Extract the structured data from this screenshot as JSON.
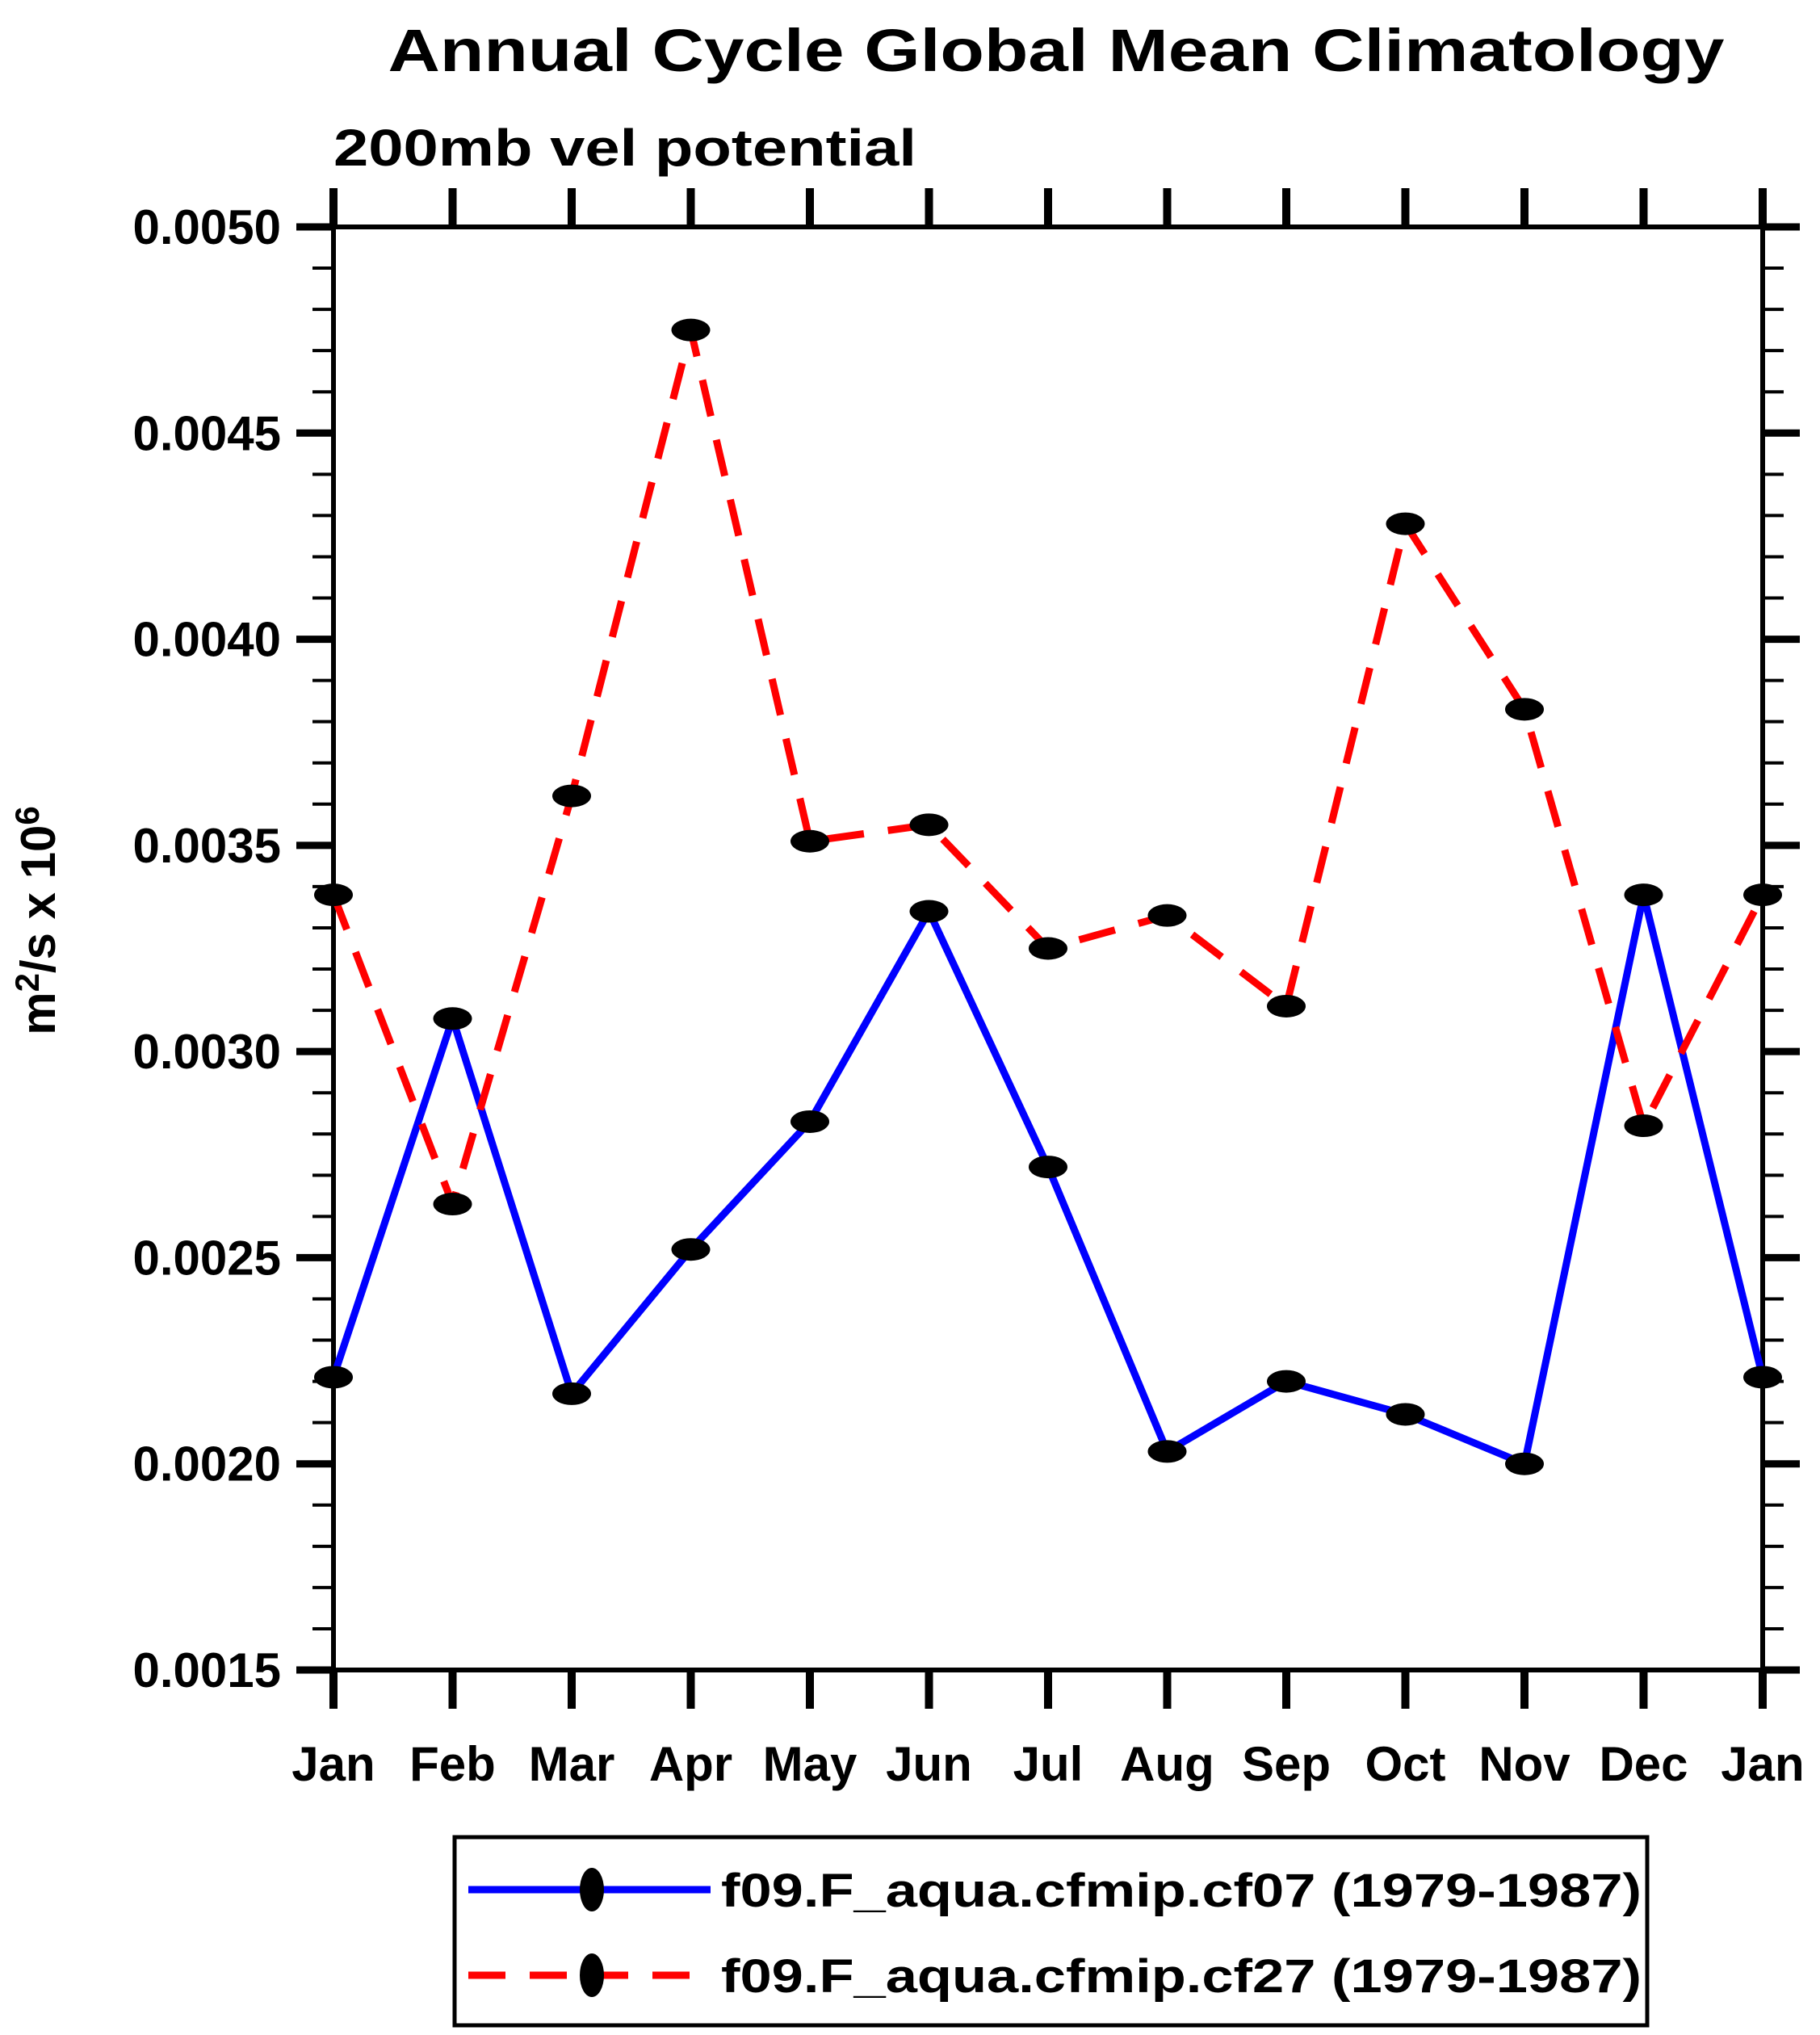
{
  "page": {
    "background_color": "#ffffff",
    "text_color": "#000000"
  },
  "chart_data": {
    "type": "line",
    "title": "Annual Cycle Global Mean Climatology",
    "subtitle": "200mb vel potential",
    "ylabel": {
      "plain": "m2/s x 106",
      "parts": [
        {
          "text": "m",
          "superscript": false
        },
        {
          "text": "2",
          "superscript": true
        },
        {
          "text": "/s x 10",
          "superscript": false
        },
        {
          "text": "6",
          "superscript": true
        }
      ]
    },
    "categories": [
      "Jan",
      "Feb",
      "Mar",
      "Apr",
      "May",
      "Jun",
      "Jul",
      "Aug",
      "Sep",
      "Oct",
      "Nov",
      "Dec",
      "Jan"
    ],
    "series": [
      {
        "name": "f09.F_aqua.cfmip.cf07 (1979-1987)",
        "color": "#0000ff",
        "line_style": "solid",
        "marker": "filled-circle",
        "marker_color": "#000000",
        "values": [
          0.00221,
          0.00308,
          0.00217,
          0.00252,
          0.00283,
          0.00334,
          0.00272,
          0.00203,
          0.0022,
          0.00212,
          0.002,
          0.00338,
          0.00221
        ]
      },
      {
        "name": "f09.F_aqua.cfmip.cf27 (1979-1987)",
        "color": "#ff0000",
        "line_style": "dashed",
        "marker": "filled-circle",
        "marker_color": "#000000",
        "values": [
          0.00338,
          0.00263,
          0.00362,
          0.00475,
          0.00351,
          0.00355,
          0.00325,
          0.00333,
          0.00311,
          0.00428,
          0.00383,
          0.00282,
          0.00338
        ]
      }
    ],
    "ylim": [
      0.0015,
      0.005
    ],
    "ytick_step": 0.0005,
    "yminor_step": 0.0001,
    "ytick_labels": [
      "0.0050",
      "0.0045",
      "0.0040",
      "0.0035",
      "0.0030",
      "0.0025",
      "0.0020",
      "0.0015"
    ],
    "grid": false,
    "legend_position": "bottom",
    "frame_color": "#000000"
  }
}
